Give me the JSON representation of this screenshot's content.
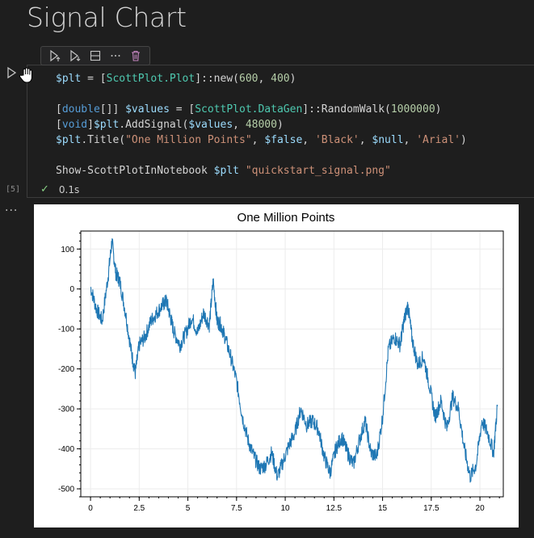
{
  "page": {
    "title": "Signal Chart"
  },
  "cell": {
    "toolbar": {
      "icons": [
        "run-above-icon",
        "run-below-icon",
        "split-cell-icon",
        "more-icon",
        "trash-icon"
      ]
    },
    "code_lines": [
      [
        {
          "t": "$plt",
          "c": "c-var"
        },
        {
          "t": " = [",
          "c": "c-def"
        },
        {
          "t": "ScottPlot.Plot",
          "c": "c-type"
        },
        {
          "t": "]::new(",
          "c": "c-def"
        },
        {
          "t": "600",
          "c": "c-num"
        },
        {
          "t": ", ",
          "c": "c-def"
        },
        {
          "t": "400",
          "c": "c-num"
        },
        {
          "t": ")",
          "c": "c-def"
        }
      ],
      [],
      [
        {
          "t": "[",
          "c": "c-def"
        },
        {
          "t": "double",
          "c": "c-kw"
        },
        {
          "t": "[]] ",
          "c": "c-def"
        },
        {
          "t": "$values",
          "c": "c-var"
        },
        {
          "t": " = [",
          "c": "c-def"
        },
        {
          "t": "ScottPlot.DataGen",
          "c": "c-type"
        },
        {
          "t": "]::RandomWalk(",
          "c": "c-def"
        },
        {
          "t": "1000000",
          "c": "c-num"
        },
        {
          "t": ")",
          "c": "c-def"
        }
      ],
      [
        {
          "t": "[",
          "c": "c-def"
        },
        {
          "t": "void",
          "c": "c-kw"
        },
        {
          "t": "]",
          "c": "c-def"
        },
        {
          "t": "$plt",
          "c": "c-var"
        },
        {
          "t": ".AddSignal(",
          "c": "c-def"
        },
        {
          "t": "$values",
          "c": "c-var"
        },
        {
          "t": ", ",
          "c": "c-def"
        },
        {
          "t": "48000",
          "c": "c-num"
        },
        {
          "t": ")",
          "c": "c-def"
        }
      ],
      [
        {
          "t": "$plt",
          "c": "c-var"
        },
        {
          "t": ".Title(",
          "c": "c-def"
        },
        {
          "t": "\"One Million Points\"",
          "c": "c-str"
        },
        {
          "t": ", ",
          "c": "c-def"
        },
        {
          "t": "$false",
          "c": "c-var"
        },
        {
          "t": ", ",
          "c": "c-def"
        },
        {
          "t": "'Black'",
          "c": "c-str"
        },
        {
          "t": ", ",
          "c": "c-def"
        },
        {
          "t": "$null",
          "c": "c-var"
        },
        {
          "t": ", ",
          "c": "c-def"
        },
        {
          "t": "'Arial'",
          "c": "c-str"
        },
        {
          "t": ")",
          "c": "c-def"
        }
      ],
      [],
      [
        {
          "t": "Show-ScottPlotInNotebook ",
          "c": "c-def"
        },
        {
          "t": "$plt",
          "c": "c-var"
        },
        {
          "t": " ",
          "c": "c-def"
        },
        {
          "t": "\"quickstart_signal.png\"",
          "c": "c-str"
        }
      ]
    ],
    "exec_count": "[5]",
    "status_time": "0.1s",
    "colors": {
      "variable": "#9cdcfe",
      "type": "#4ec9b0",
      "keyword": "#569cd6",
      "number": "#b5cea8",
      "string": "#ce9178"
    }
  },
  "chart_data": {
    "type": "line",
    "title": "One Million Points",
    "xlabel": "",
    "ylabel": "",
    "xlim": [
      -0.5,
      21.2
    ],
    "ylim": [
      -520,
      145
    ],
    "xticks": [
      0,
      2.5,
      5,
      7.5,
      10,
      12.5,
      15,
      17.5,
      20
    ],
    "xtick_labels": [
      "0",
      "2.5",
      "5",
      "7.5",
      "10",
      "12.5",
      "15",
      "17.5",
      "20"
    ],
    "yticks": [
      100,
      0,
      -100,
      -200,
      -300,
      -400,
      -500
    ],
    "ytick_labels": [
      "100",
      "0",
      "-100",
      "-200",
      "-300",
      "-400",
      "-500"
    ],
    "grid": true,
    "line_color": "#1f77b4",
    "series": [
      {
        "x": [
          0,
          0.3,
          0.6,
          0.9,
          1.1,
          1.3,
          1.5,
          1.8,
          2.1,
          2.3,
          2.5,
          2.8,
          3.1,
          3.4,
          3.7,
          3.9,
          4.1,
          4.3,
          4.6,
          4.9,
          5.2,
          5.5,
          5.8,
          6.1,
          6.3,
          6.5,
          6.7,
          6.9,
          7.2,
          7.5,
          7.8,
          8.1,
          8.4,
          8.7,
          9.0,
          9.3,
          9.6,
          9.9,
          10.2,
          10.5,
          10.8,
          11.1,
          11.4,
          11.7,
          12.0,
          12.3,
          12.6,
          12.9,
          13.2,
          13.5,
          13.8,
          14.1,
          14.4,
          14.7,
          15.0,
          15.3,
          15.6,
          15.9,
          16.1,
          16.3,
          16.5,
          16.8,
          17.1,
          17.4,
          17.7,
          18.0,
          18.3,
          18.6,
          18.9,
          19.2,
          19.5,
          19.8,
          20.1,
          20.4,
          20.7,
          20.9
        ],
        "y": [
          5,
          -50,
          -80,
          30,
          120,
          40,
          20,
          -60,
          -160,
          -210,
          -140,
          -120,
          -80,
          -60,
          -40,
          -30,
          -70,
          -110,
          -140,
          -110,
          -70,
          -110,
          -60,
          -90,
          20,
          -80,
          -90,
          -120,
          -170,
          -230,
          -320,
          -380,
          -420,
          -450,
          -440,
          -410,
          -470,
          -430,
          -390,
          -360,
          -300,
          -340,
          -330,
          -350,
          -420,
          -460,
          -400,
          -370,
          -410,
          -440,
          -380,
          -330,
          -410,
          -420,
          -320,
          -150,
          -120,
          -140,
          -80,
          -40,
          -120,
          -190,
          -170,
          -240,
          -320,
          -280,
          -350,
          -270,
          -300,
          -400,
          -470,
          -440,
          -330,
          -360,
          -410,
          -290
        ]
      }
    ]
  }
}
